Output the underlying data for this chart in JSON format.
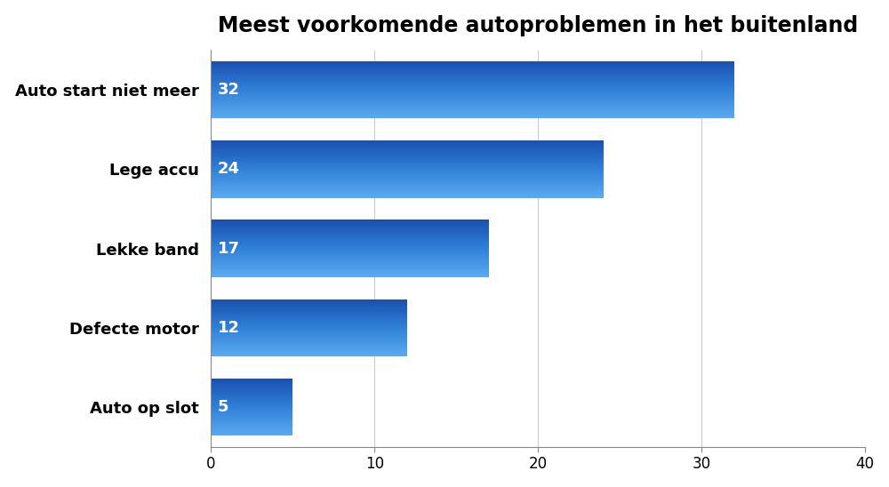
{
  "title": "Meest voorkomende autoproblemen in het buitenland",
  "categories": [
    "Auto op slot",
    "Defecte motor",
    "Lekke band",
    "Lege accu",
    "Auto start niet meer"
  ],
  "values": [
    5,
    12,
    17,
    24,
    32
  ],
  "bar_color_top": "#5aaaf0",
  "bar_color_mid": "#3080d8",
  "bar_color_bottom": "#1a50b0",
  "xlim": [
    0,
    40
  ],
  "xticks": [
    0,
    10,
    20,
    30,
    40
  ],
  "title_fontsize": 17,
  "label_fontsize": 13,
  "value_fontsize": 13,
  "background_color": "#ffffff",
  "bar_height": 0.72
}
